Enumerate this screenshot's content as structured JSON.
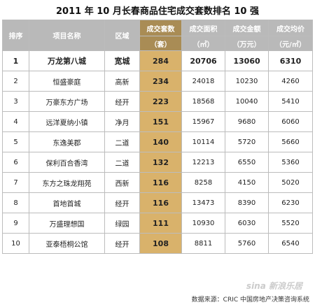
{
  "title": "2011 年 10 月长春商品住宅成交套数排名 10 强",
  "headers": {
    "rank": "排序",
    "project": "项目名称",
    "area": "区域",
    "units": "成交套数",
    "units_unit": "（套）",
    "sqm": "成交面积",
    "sqm_unit": "（㎡）",
    "amount": "成交金额",
    "amount_unit": "（万元）",
    "price": "成交均价",
    "price_unit": "（元/㎡）"
  },
  "rows": [
    {
      "rank": "1",
      "project": "万龙第八城",
      "area": "宽城",
      "units": "284",
      "sqm": "20706",
      "amount": "13060",
      "price": "6310"
    },
    {
      "rank": "2",
      "project": "恒盛豪庭",
      "area": "高新",
      "units": "234",
      "sqm": "24018",
      "amount": "10230",
      "price": "4260"
    },
    {
      "rank": "3",
      "project": "万豪东方广场",
      "area": "经开",
      "units": "223",
      "sqm": "18568",
      "amount": "10040",
      "price": "5410"
    },
    {
      "rank": "4",
      "project": "远洋夏纳小镇",
      "area": "净月",
      "units": "151",
      "sqm": "15967",
      "amount": "9680",
      "price": "6060"
    },
    {
      "rank": "5",
      "project": "东逸美郡",
      "area": "二道",
      "units": "140",
      "sqm": "10114",
      "amount": "5720",
      "price": "5660"
    },
    {
      "rank": "6",
      "project": "保利百合香湾",
      "area": "二道",
      "units": "132",
      "sqm": "12213",
      "amount": "6550",
      "price": "5360"
    },
    {
      "rank": "7",
      "project": "东方之珠龙翔苑",
      "area": "西新",
      "units": "116",
      "sqm": "8258",
      "amount": "4150",
      "price": "5020"
    },
    {
      "rank": "8",
      "project": "首地首城",
      "area": "经开",
      "units": "116",
      "sqm": "13473",
      "amount": "8390",
      "price": "6230"
    },
    {
      "rank": "9",
      "project": "万盛理想国",
      "area": "绿园",
      "units": "111",
      "sqm": "10930",
      "amount": "6030",
      "price": "5520"
    },
    {
      "rank": "10",
      "project": "亚泰梧桐公馆",
      "area": "经开",
      "units": "108",
      "sqm": "8811",
      "amount": "5760",
      "price": "6540"
    }
  ],
  "footer": "数据来源：CRIC 中国房地产决策咨询系统",
  "watermark": "sina 新浪乐居",
  "colors": {
    "header_bg": "#b9b9b9",
    "highlight_header": "#a98c55",
    "highlight_cell": "#d9b26b"
  }
}
